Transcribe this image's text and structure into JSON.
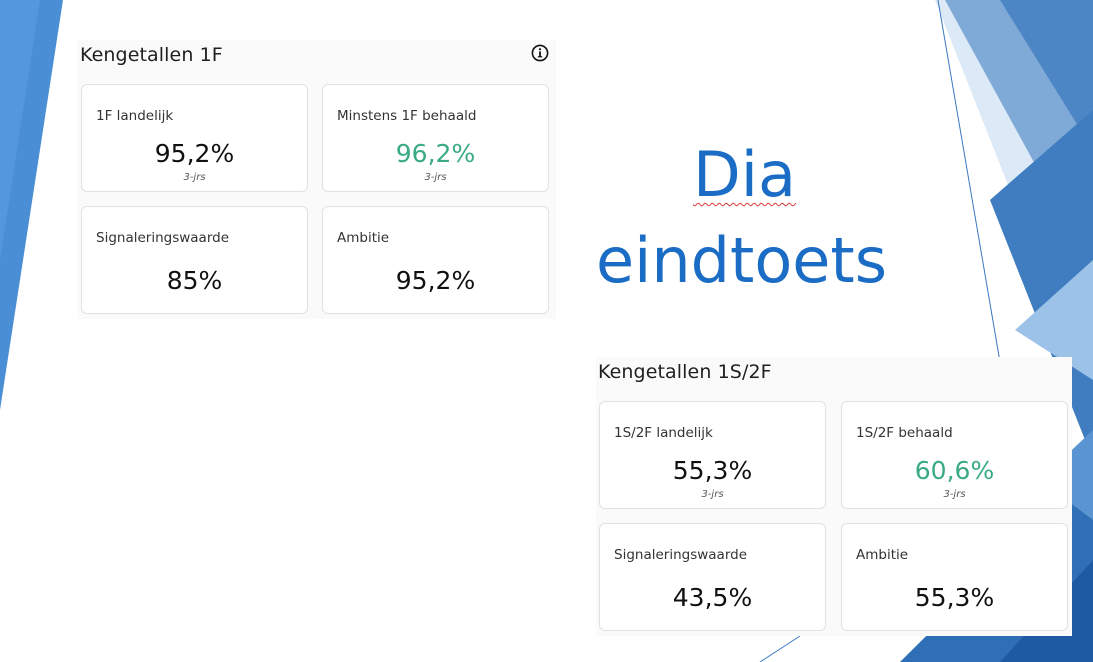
{
  "slide": {
    "title_line1": "Dia",
    "title_line2": "eindtoets"
  },
  "panel_1f": {
    "title": "Kengetallen 1F",
    "info_icon": "info-circle-icon",
    "cards": [
      {
        "label": "1F landelijk",
        "value": "95,2%",
        "sub": "3-jrs"
      },
      {
        "label": "Minstens 1F behaald",
        "value": "96,2%",
        "sub": "3-jrs"
      },
      {
        "label": "Signaleringswaarde",
        "value": "85%"
      },
      {
        "label": "Ambitie",
        "value": "95,2%"
      }
    ]
  },
  "panel_1s2f": {
    "title": "Kengetallen 1S/2F",
    "cards": [
      {
        "label": "1S/2F landelijk",
        "value": "55,3%",
        "sub": "3-jrs"
      },
      {
        "label": "1S/2F behaald",
        "value": "60,6%",
        "sub": "3-jrs"
      },
      {
        "label": "Signaleringswaarde",
        "value": "43,5%"
      },
      {
        "label": "Ambitie",
        "value": "55,3%"
      }
    ]
  },
  "colors": {
    "slide_title": "#1a6cc4",
    "accent_green": "#3aaa86",
    "deco_blue_dark": "#2f6fb6",
    "deco_blue_light": "#8fb8e0"
  }
}
